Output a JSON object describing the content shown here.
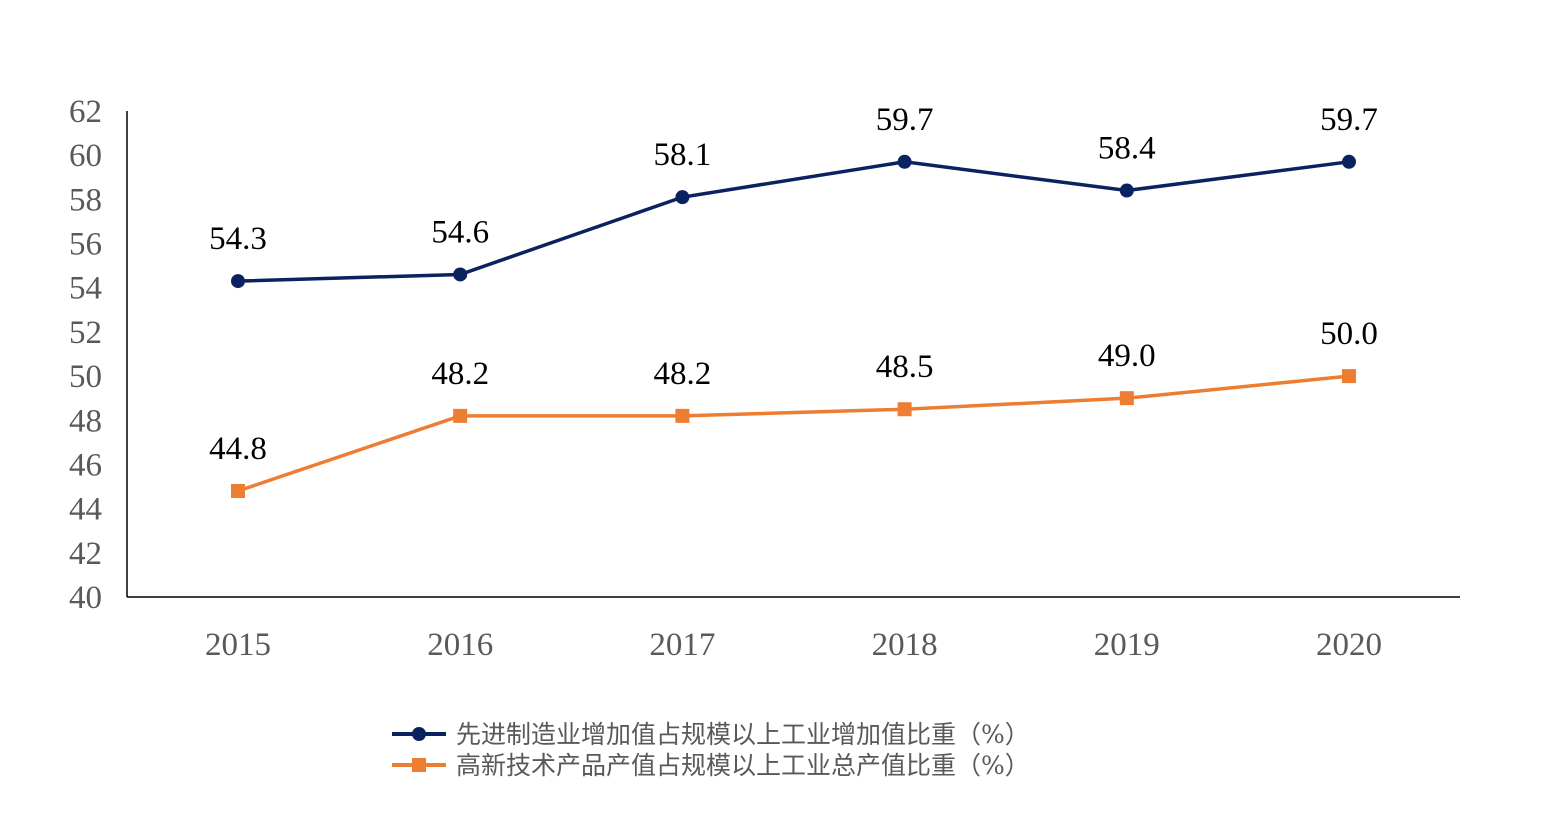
{
  "chart_data": {
    "type": "line",
    "title": "",
    "xlabel": "",
    "ylabel": "",
    "x": [
      "2015",
      "2016",
      "2017",
      "2018",
      "2019",
      "2020"
    ],
    "ylim": [
      40,
      62
    ],
    "yticks": [
      40,
      42,
      44,
      46,
      48,
      50,
      52,
      54,
      56,
      58,
      60,
      62
    ],
    "grid": false,
    "legend_position": "bottom",
    "series": [
      {
        "name": "先进制造业增加值占规模以上工业增加值比重（%）",
        "values": [
          54.3,
          54.6,
          58.1,
          59.7,
          58.4,
          59.7
        ],
        "labels": [
          "54.3",
          "54.6",
          "58.1",
          "59.7",
          "58.4",
          "59.7"
        ],
        "color": "#0b2260",
        "marker": "circle"
      },
      {
        "name": "高新技术产品产值占规模以上工业总产值比重（%）",
        "values": [
          44.8,
          48.2,
          48.2,
          48.5,
          49.0,
          50.0
        ],
        "labels": [
          "44.8",
          "48.2",
          "48.2",
          "48.5",
          "49.0",
          "50.0"
        ],
        "color": "#ed7d31",
        "marker": "square"
      }
    ]
  }
}
